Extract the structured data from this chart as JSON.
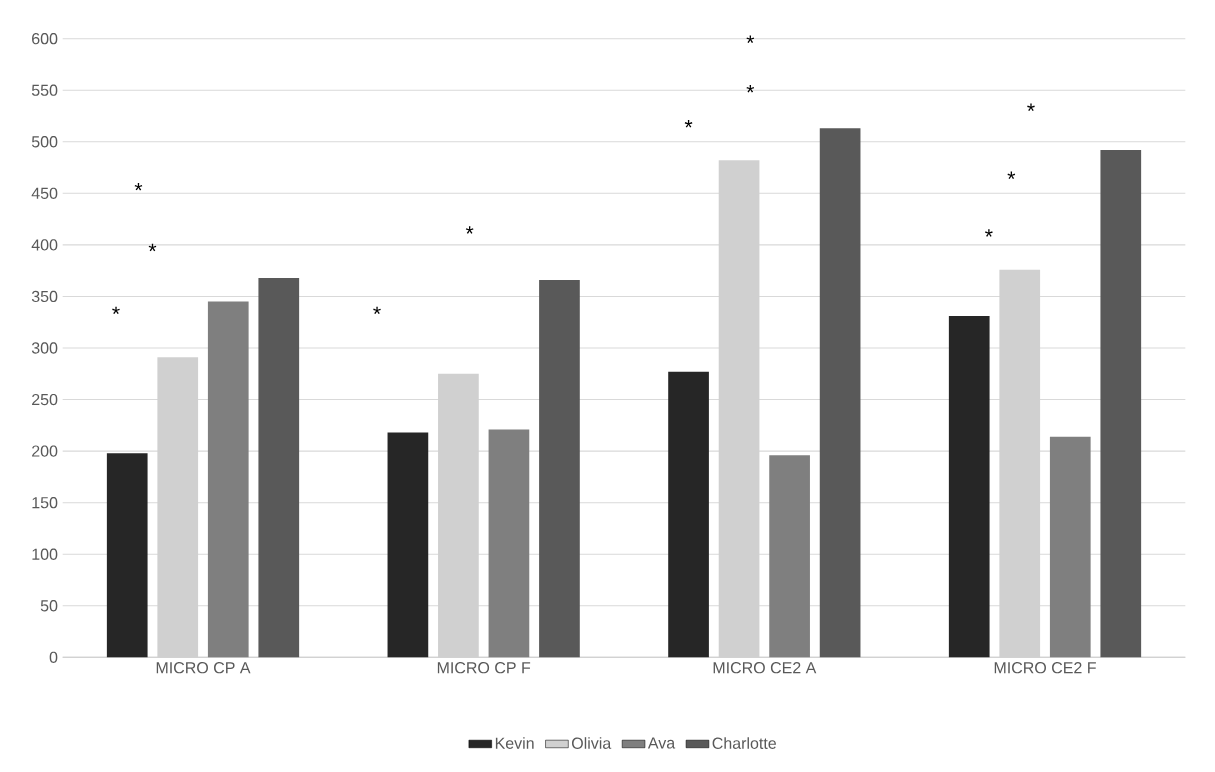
{
  "chart_data": {
    "type": "bar",
    "categories": [
      "MICRO CP A",
      "MICRO CP F",
      "MICRO CE2 A",
      "MICRO CE2 F"
    ],
    "series": [
      {
        "name": "Kevin",
        "color": "#262626",
        "values": [
          198,
          218,
          277,
          331
        ]
      },
      {
        "name": "Olivia",
        "color": "#d0d0d0",
        "values": [
          291,
          275,
          482,
          376
        ]
      },
      {
        "name": "Ava",
        "color": "#7f7f7f",
        "values": [
          345,
          221,
          196,
          214
        ]
      },
      {
        "name": "Charlotte",
        "color": "#595959",
        "values": [
          368,
          366,
          513,
          492
        ]
      }
    ],
    "ylim": [
      0,
      600
    ],
    "yticks": [
      0,
      50,
      100,
      150,
      200,
      250,
      300,
      350,
      400,
      450,
      500,
      550,
      600
    ],
    "grid": "y",
    "legend": "bottom",
    "annotations": [
      "*",
      "*",
      "*",
      "*",
      "*",
      "*",
      "*",
      "*",
      "*",
      "*",
      "*"
    ]
  }
}
